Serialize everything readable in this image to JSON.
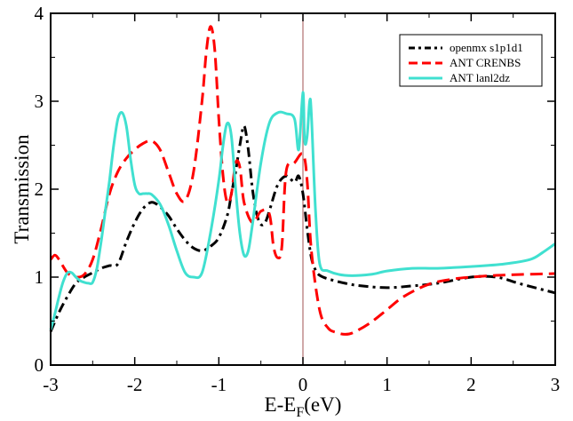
{
  "chart_data": {
    "type": "line",
    "xlabel_main": "E-E",
    "xlabel_sub": "F",
    "xlabel_unit": "(eV)",
    "ylabel": "Transmission",
    "xlim": [
      -3,
      3
    ],
    "ylim": [
      0,
      4
    ],
    "xticks": [
      -3,
      -2,
      -1,
      0,
      1,
      2,
      3
    ],
    "yticks": [
      0,
      1,
      2,
      3,
      4
    ],
    "xtick_labels": [
      "-3",
      "-2",
      "-1",
      "0",
      "1",
      "2",
      "3"
    ],
    "ytick_labels": [
      "0",
      "1",
      "2",
      "3",
      "4"
    ],
    "vline_x": 0,
    "vline_color": "#b07070",
    "legend_position": "top-right",
    "series": [
      {
        "name": "openmx s1p1d1",
        "color": "#000000",
        "style": "dash-dot",
        "x": [
          -3.0,
          -2.9,
          -2.8,
          -2.7,
          -2.6,
          -2.5,
          -2.4,
          -2.3,
          -2.2,
          -2.1,
          -2.0,
          -1.9,
          -1.8,
          -1.7,
          -1.6,
          -1.5,
          -1.4,
          -1.3,
          -1.2,
          -1.1,
          -1.0,
          -0.9,
          -0.85,
          -0.8,
          -0.75,
          -0.7,
          -0.65,
          -0.6,
          -0.55,
          -0.5,
          -0.45,
          -0.4,
          -0.3,
          -0.2,
          -0.1,
          -0.05,
          0.0,
          0.05,
          0.1,
          0.15,
          0.2,
          0.3,
          0.5,
          0.7,
          1.0,
          1.3,
          1.6,
          2.0,
          2.3,
          2.6,
          3.0
        ],
        "y": [
          0.38,
          0.6,
          0.78,
          0.93,
          1.0,
          1.05,
          1.1,
          1.13,
          1.15,
          1.4,
          1.62,
          1.78,
          1.85,
          1.8,
          1.7,
          1.55,
          1.42,
          1.33,
          1.3,
          1.35,
          1.45,
          1.7,
          1.95,
          2.2,
          2.5,
          2.72,
          2.45,
          2.0,
          1.72,
          1.6,
          1.62,
          1.75,
          2.05,
          2.15,
          2.08,
          2.15,
          1.95,
          1.55,
          1.22,
          1.08,
          1.02,
          0.98,
          0.93,
          0.9,
          0.88,
          0.9,
          0.93,
          1.0,
          1.0,
          0.92,
          0.82
        ]
      },
      {
        "name": "ANT CRENBS",
        "color": "#ff0000",
        "style": "dashed",
        "x": [
          -3.0,
          -2.95,
          -2.9,
          -2.8,
          -2.7,
          -2.6,
          -2.5,
          -2.4,
          -2.3,
          -2.2,
          -2.1,
          -2.0,
          -1.9,
          -1.8,
          -1.7,
          -1.6,
          -1.5,
          -1.4,
          -1.3,
          -1.2,
          -1.15,
          -1.1,
          -1.05,
          -1.0,
          -0.95,
          -0.9,
          -0.85,
          -0.8,
          -0.75,
          -0.7,
          -0.6,
          -0.5,
          -0.4,
          -0.35,
          -0.3,
          -0.25,
          -0.2,
          -0.1,
          0.0,
          0.05,
          0.1,
          0.2,
          0.3,
          0.4,
          0.5,
          0.6,
          0.8,
          1.0,
          1.2,
          1.5,
          1.8,
          2.0,
          2.3,
          2.6,
          3.0
        ],
        "y": [
          1.2,
          1.25,
          1.2,
          1.05,
          1.0,
          1.03,
          1.2,
          1.55,
          1.95,
          2.2,
          2.35,
          2.45,
          2.52,
          2.55,
          2.45,
          2.2,
          1.95,
          1.87,
          2.2,
          3.0,
          3.55,
          3.85,
          3.6,
          2.8,
          2.15,
          1.85,
          1.95,
          2.3,
          2.25,
          1.85,
          1.62,
          1.75,
          1.72,
          1.35,
          1.22,
          1.35,
          2.2,
          2.3,
          2.4,
          2.1,
          1.3,
          0.62,
          0.42,
          0.37,
          0.35,
          0.37,
          0.48,
          0.63,
          0.78,
          0.92,
          0.98,
          1.0,
          1.02,
          1.03,
          1.04
        ]
      },
      {
        "name": "ANT lanl2dz",
        "color": "#40e0d0",
        "style": "solid",
        "x": [
          -3.0,
          -2.95,
          -2.9,
          -2.85,
          -2.8,
          -2.75,
          -2.7,
          -2.65,
          -2.6,
          -2.55,
          -2.5,
          -2.45,
          -2.4,
          -2.35,
          -2.3,
          -2.25,
          -2.2,
          -2.15,
          -2.1,
          -2.05,
          -2.0,
          -1.95,
          -1.9,
          -1.85,
          -1.8,
          -1.7,
          -1.6,
          -1.5,
          -1.4,
          -1.3,
          -1.2,
          -1.1,
          -1.0,
          -0.95,
          -0.9,
          -0.85,
          -0.8,
          -0.75,
          -0.7,
          -0.65,
          -0.6,
          -0.5,
          -0.4,
          -0.3,
          -0.2,
          -0.1,
          -0.05,
          0.0,
          0.02,
          0.05,
          0.08,
          0.1,
          0.15,
          0.2,
          0.3,
          0.5,
          0.8,
          1.0,
          1.3,
          1.6,
          2.0,
          2.4,
          2.7,
          2.85,
          3.0
        ],
        "y": [
          0.4,
          0.58,
          0.78,
          0.95,
          1.05,
          1.05,
          1.0,
          0.96,
          0.94,
          0.93,
          0.94,
          1.1,
          1.4,
          1.75,
          2.1,
          2.5,
          2.8,
          2.87,
          2.72,
          2.35,
          2.05,
          1.95,
          1.95,
          1.95,
          1.94,
          1.83,
          1.6,
          1.3,
          1.05,
          1.0,
          1.05,
          1.5,
          2.1,
          2.5,
          2.75,
          2.6,
          2.0,
          1.5,
          1.25,
          1.3,
          1.6,
          2.3,
          2.75,
          2.87,
          2.86,
          2.8,
          2.45,
          3.1,
          2.55,
          2.6,
          3.0,
          2.85,
          1.75,
          1.15,
          1.07,
          1.02,
          1.03,
          1.07,
          1.1,
          1.1,
          1.12,
          1.15,
          1.2,
          1.28,
          1.38
        ]
      }
    ]
  }
}
